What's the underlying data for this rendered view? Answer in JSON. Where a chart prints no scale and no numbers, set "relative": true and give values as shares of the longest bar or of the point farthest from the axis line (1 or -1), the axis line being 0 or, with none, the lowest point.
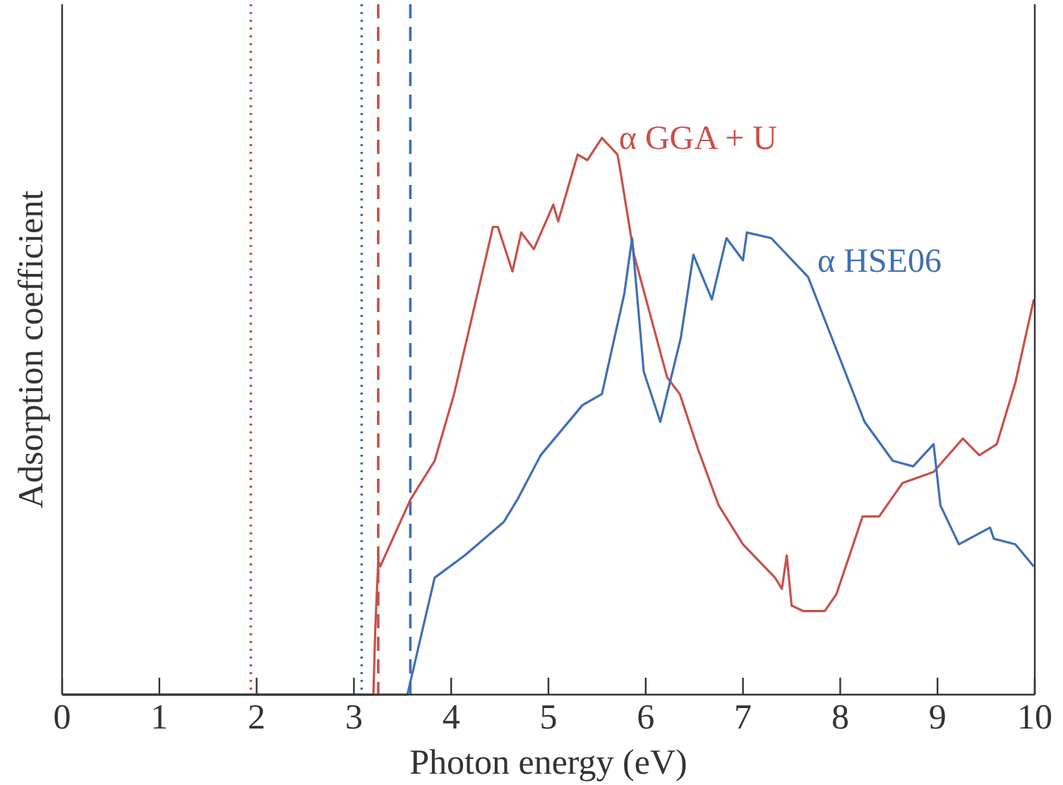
{
  "chart_data": {
    "type": "line",
    "relative": true,
    "xlabel": "Photon energy (eV)",
    "ylabel": "Adsorption coefficient",
    "xlim": [
      0,
      10
    ],
    "xticks": [
      0,
      1,
      2,
      3,
      4,
      5,
      6,
      7,
      8,
      9,
      10
    ],
    "grid": false,
    "line_style": "solid",
    "marker": "none",
    "series": [
      {
        "name": "α GGA + U",
        "color": "#c8504a",
        "x": [
          0,
          3.2,
          3.22,
          3.25,
          3.27,
          3.58,
          3.83,
          4.03,
          4.43,
          4.48,
          4.63,
          4.72,
          4.85,
          5.05,
          5.1,
          5.3,
          5.4,
          5.55,
          5.71,
          5.74,
          5.88,
          6.22,
          6.35,
          6.54,
          6.75,
          7.0,
          7.33,
          7.4,
          7.45,
          7.5,
          7.62,
          7.84,
          7.96,
          8.23,
          8.4,
          8.64,
          8.96,
          9.26,
          9.43,
          9.61,
          9.8,
          9.99
        ],
        "values": [
          0,
          0,
          0.12,
          0.24,
          0.23,
          0.35,
          0.42,
          0.54,
          0.84,
          0.84,
          0.76,
          0.83,
          0.8,
          0.88,
          0.85,
          0.97,
          0.96,
          1,
          0.97,
          0.94,
          0.79,
          0.57,
          0.54,
          0.44,
          0.34,
          0.27,
          0.21,
          0.19,
          0.25,
          0.16,
          0.15,
          0.15,
          0.18,
          0.32,
          0.32,
          0.38,
          0.4,
          0.46,
          0.43,
          0.45,
          0.56,
          0.71
        ]
      },
      {
        "name": "α HSE06",
        "color": "#3f6fb5",
        "x": [
          0,
          3.55,
          3.83,
          4.14,
          4.54,
          4.68,
          4.92,
          5.35,
          5.55,
          5.78,
          5.86,
          5.98,
          6.15,
          6.36,
          6.49,
          6.68,
          6.83,
          7.0,
          7.04,
          7.29,
          7.67,
          7.96,
          8.25,
          8.54,
          8.75,
          8.96,
          9.03,
          9.22,
          9.54,
          9.58,
          9.8,
          9.99
        ],
        "values": [
          0,
          0,
          0.21,
          0.25,
          0.31,
          0.35,
          0.43,
          0.52,
          0.54,
          0.72,
          0.82,
          0.58,
          0.49,
          0.64,
          0.79,
          0.71,
          0.82,
          0.78,
          0.83,
          0.82,
          0.75,
          0.62,
          0.49,
          0.42,
          0.41,
          0.45,
          0.34,
          0.27,
          0.3,
          0.28,
          0.27,
          0.23
        ]
      }
    ],
    "ref_lines": [
      {
        "axis": "x",
        "value": 1.94,
        "color": "#c8504a",
        "line_style": "dotted"
      },
      {
        "axis": "x",
        "value": 3.08,
        "color": "#3f6fb5",
        "line_style": "dotted"
      },
      {
        "axis": "x",
        "value": 3.25,
        "color": "#c8504a",
        "line_style": "dashed"
      },
      {
        "axis": "x",
        "value": 3.58,
        "color": "#3f6fb5",
        "line_style": "dashed"
      }
    ]
  }
}
